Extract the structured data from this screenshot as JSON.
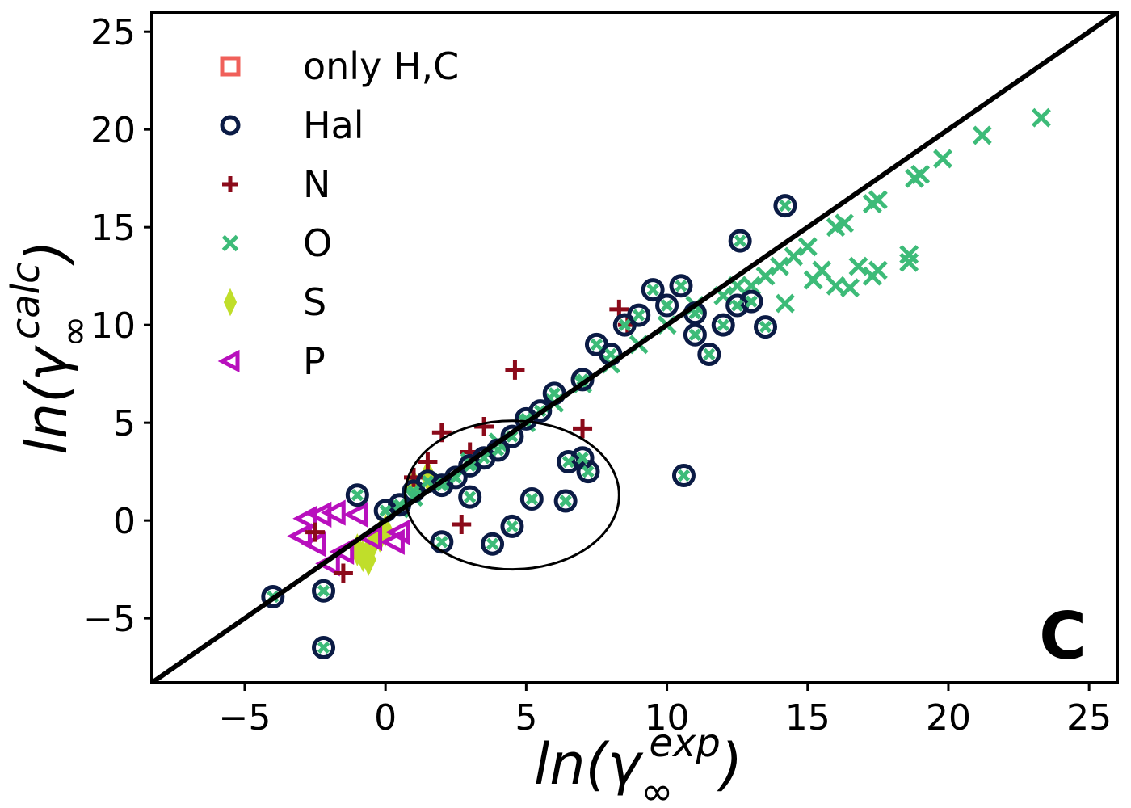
{
  "chart_data": {
    "type": "scatter",
    "xlabel": "ln(γ∞exp)",
    "ylabel": "ln(γ∞calc)",
    "axis_titles": {
      "x": {
        "base": "ln(γ",
        "sub": "∞",
        "sup": "exp",
        "close": ")"
      },
      "y": {
        "base": "ln(γ",
        "sub": "∞",
        "sup": "calc",
        "close": ")"
      }
    },
    "panel_label": "C",
    "xlim": [
      -8.3,
      26
    ],
    "ylim": [
      -8.3,
      26
    ],
    "xticks": [
      -5,
      0,
      5,
      10,
      15,
      20,
      25
    ],
    "yticks": [
      -5,
      0,
      5,
      10,
      15,
      20,
      25
    ],
    "xtick_labels": [
      "−5",
      "0",
      "5",
      "10",
      "15",
      "20",
      "25"
    ],
    "ytick_labels": [
      "−5",
      "0",
      "5",
      "10",
      "15",
      "20",
      "25"
    ],
    "grid": false,
    "legend_position": "top-left",
    "diagonal_line": {
      "x": [
        -8.3,
        26
      ],
      "y": [
        -8.3,
        26
      ],
      "color": "#000000"
    },
    "ellipse_annotation": {
      "cx": 4.5,
      "cy": 1.3,
      "rx": 3.8,
      "ry": 3.8
    },
    "series": [
      {
        "name": "only H,C",
        "marker": "square",
        "color": "#f0605a",
        "points": []
      },
      {
        "name": "Hal",
        "marker": "circle",
        "color": "#0b1b45",
        "points": [
          [
            -4,
            -3.9
          ],
          [
            -2.2,
            -6.5
          ],
          [
            -2.2,
            -3.6
          ],
          [
            -1,
            1.3
          ],
          [
            0,
            0.5
          ],
          [
            0.5,
            0.8
          ],
          [
            1,
            1.5
          ],
          [
            1.5,
            2
          ],
          [
            2,
            1.8
          ],
          [
            2,
            -1.1
          ],
          [
            2.5,
            2.2
          ],
          [
            3,
            2.8
          ],
          [
            3,
            1.2
          ],
          [
            3.5,
            3.2
          ],
          [
            3.8,
            -1.2
          ],
          [
            4,
            3.6
          ],
          [
            4.5,
            -0.3
          ],
          [
            4.5,
            4.3
          ],
          [
            5,
            5.2
          ],
          [
            5.2,
            1.1
          ],
          [
            5.5,
            5.6
          ],
          [
            6,
            6.5
          ],
          [
            6.4,
            1
          ],
          [
            6.5,
            3
          ],
          [
            7,
            7.2
          ],
          [
            7,
            3.2
          ],
          [
            7.2,
            2.5
          ],
          [
            7.5,
            9
          ],
          [
            8,
            8.5
          ],
          [
            8.5,
            10
          ],
          [
            9,
            10.5
          ],
          [
            9.5,
            11.8
          ],
          [
            10,
            11
          ],
          [
            10.5,
            12
          ],
          [
            10.6,
            2.3
          ],
          [
            11,
            10.6
          ],
          [
            11,
            9.5
          ],
          [
            11.5,
            8.5
          ],
          [
            12,
            10
          ],
          [
            12.5,
            11
          ],
          [
            12.6,
            14.3
          ],
          [
            13,
            11.2
          ],
          [
            13.5,
            9.9
          ],
          [
            14.2,
            16.1
          ]
        ]
      },
      {
        "name": "N",
        "marker": "plus",
        "color": "#8b0a1a",
        "points": [
          [
            -2.5,
            -0.6
          ],
          [
            -1.5,
            -2.7
          ],
          [
            1,
            2.2
          ],
          [
            1.5,
            3
          ],
          [
            2,
            4.5
          ],
          [
            2.7,
            -0.2
          ],
          [
            3,
            3.5
          ],
          [
            3.5,
            4.8
          ],
          [
            4.6,
            7.7
          ],
          [
            7,
            4.7
          ],
          [
            8.3,
            10.8
          ],
          [
            8.6,
            10
          ]
        ]
      },
      {
        "name": "O",
        "marker": "x",
        "color": "#3dbb78",
        "points": [
          [
            0.5,
            0.6
          ],
          [
            1,
            1.2
          ],
          [
            2,
            2
          ],
          [
            3,
            3
          ],
          [
            4,
            4
          ],
          [
            5,
            5
          ],
          [
            6,
            6
          ],
          [
            7,
            7
          ],
          [
            8,
            8
          ],
          [
            9,
            9
          ],
          [
            10,
            10
          ],
          [
            11,
            11
          ],
          [
            12,
            11.5
          ],
          [
            12.5,
            12
          ],
          [
            13,
            12
          ],
          [
            13.5,
            12.5
          ],
          [
            14,
            13
          ],
          [
            14.2,
            11.1
          ],
          [
            14.5,
            13.5
          ],
          [
            15,
            14
          ],
          [
            15.2,
            12.3
          ],
          [
            15.5,
            12.8
          ],
          [
            16,
            15
          ],
          [
            16,
            12
          ],
          [
            16.3,
            15.2
          ],
          [
            16.5,
            11.9
          ],
          [
            16.8,
            13
          ],
          [
            17.3,
            12.5
          ],
          [
            17.5,
            12.8
          ],
          [
            17.3,
            16.2
          ],
          [
            17.5,
            16.4
          ],
          [
            18.6,
            13.2
          ],
          [
            18.6,
            13.6
          ],
          [
            18.8,
            17.5
          ],
          [
            19,
            17.7
          ],
          [
            19.8,
            18.5
          ],
          [
            21.2,
            19.7
          ],
          [
            23.3,
            20.6
          ]
        ]
      },
      {
        "name": "S",
        "marker": "diamond",
        "color": "#c0de2a",
        "points": [
          [
            -1,
            -1.5
          ],
          [
            -0.8,
            -1.8
          ],
          [
            -0.6,
            -2
          ],
          [
            -0.5,
            -1.3
          ],
          [
            -0.2,
            -0.8
          ],
          [
            0,
            -0.5
          ],
          [
            1,
            1.8
          ],
          [
            1.5,
            2.3
          ]
        ]
      },
      {
        "name": "P",
        "marker": "triangle-left",
        "color": "#b80fbd",
        "points": [
          [
            -3,
            -0.8
          ],
          [
            -2.8,
            0.1
          ],
          [
            -2.5,
            -1.2
          ],
          [
            -2.3,
            0.3
          ],
          [
            -2,
            -2.2
          ],
          [
            -1.8,
            0.4
          ],
          [
            -1.5,
            -1.6
          ],
          [
            -1,
            0.3
          ],
          [
            -0.5,
            -0.9
          ],
          [
            0.3,
            -1.1
          ],
          [
            0.5,
            -0.6
          ]
        ]
      }
    ]
  }
}
